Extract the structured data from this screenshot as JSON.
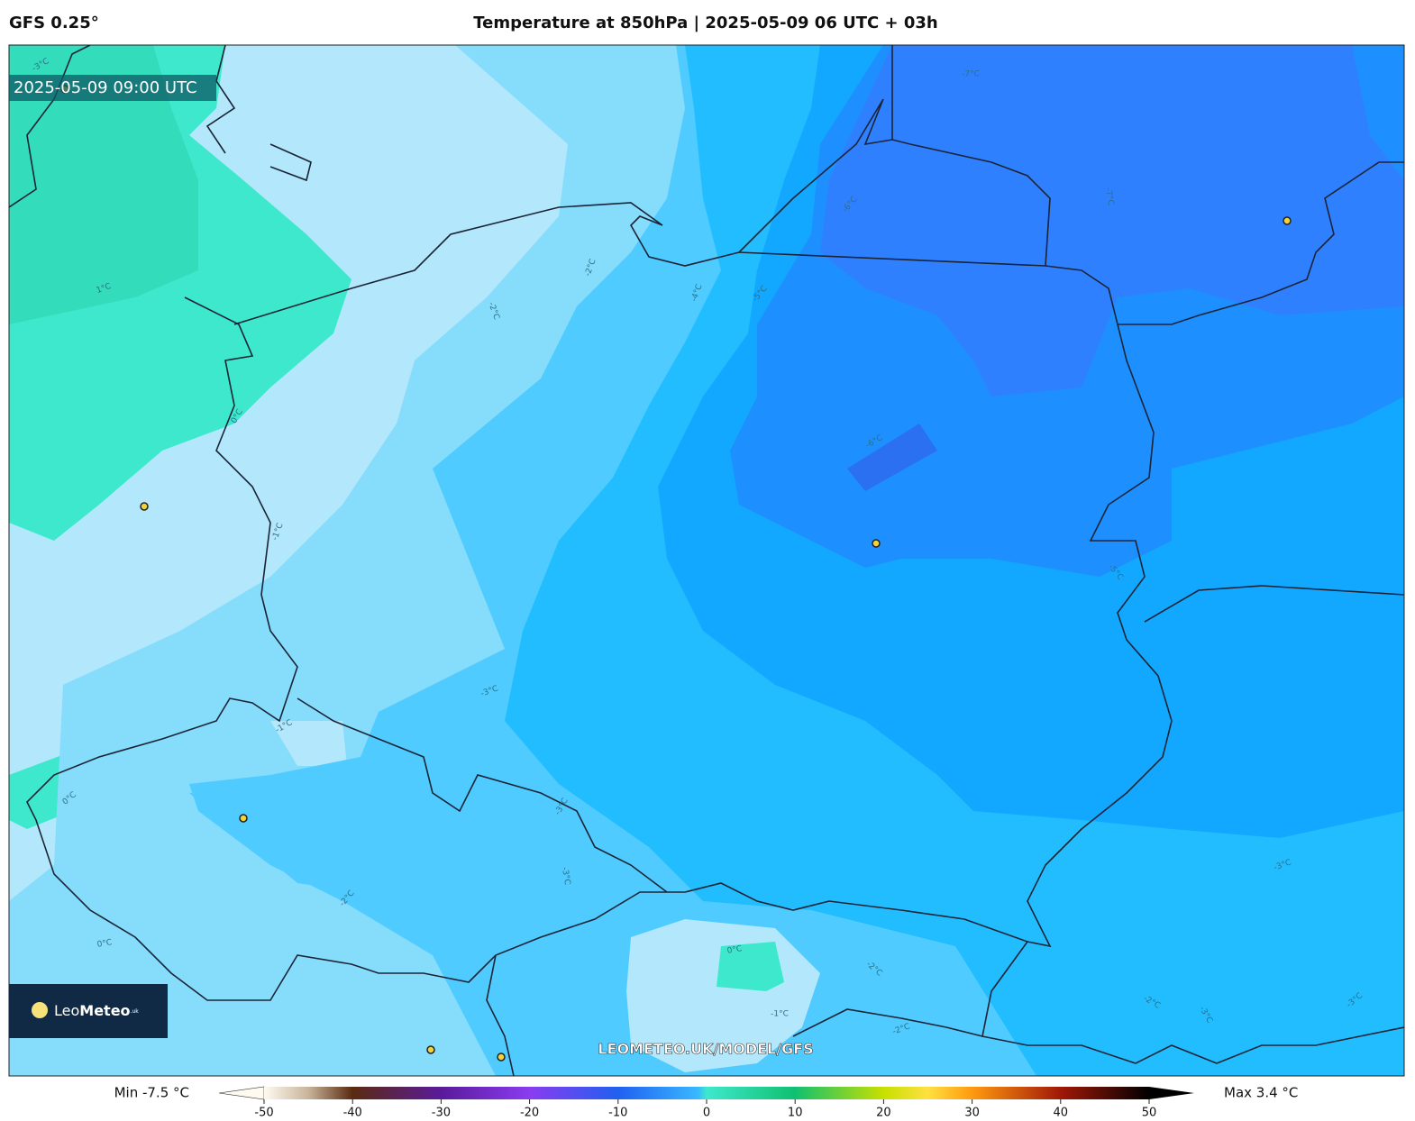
{
  "header": {
    "model": "GFS 0.25°",
    "title": "Temperature at 850hPa | 2025-05-09 06 UTC + 03h"
  },
  "map": {
    "timestamp": "2025-05-09 09:00 UTC",
    "watermark": "LEOMETEO.UK/MODEL/GFS",
    "contour_labels": [
      "-3°C",
      "1°C",
      "0°C",
      "-1°C",
      "-1°C",
      "0°C",
      "-2°C",
      "0°C",
      "-2°C",
      "-2°C",
      "-3°C",
      "-3°C",
      "-3°C",
      "-4°C",
      "-5°C",
      "-6°C",
      "-7°C",
      "-7°C",
      "-6°C",
      "-5°C",
      "-3°C",
      "0°C",
      "-1°C",
      "-2°C",
      "-2°C",
      "-2°C",
      "-3°C",
      "-3°C"
    ]
  },
  "logo": {
    "leo": "Leo",
    "meteo": "Meteo",
    "suffix": ".uk"
  },
  "colorbar": {
    "min_label": "Min -7.5 °C",
    "max_label": "Max 3.4 °C",
    "range": [
      -50,
      50
    ],
    "ticks": [
      -50,
      -40,
      -30,
      -20,
      -10,
      0,
      10,
      20,
      30,
      40,
      50
    ]
  }
}
